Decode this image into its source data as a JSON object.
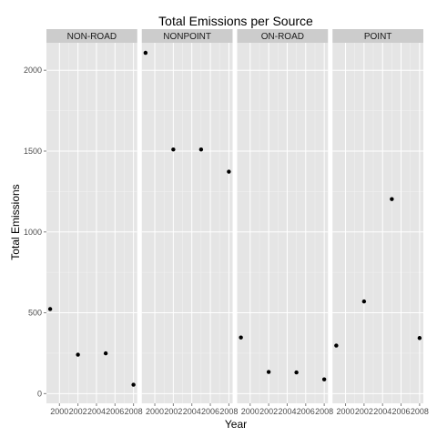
{
  "chart_data": {
    "type": "scatter",
    "title": "Total Emissions per Source",
    "xlabel": "Year",
    "ylabel": "Total Emissions",
    "ylim": [
      -60,
      2170
    ],
    "xlim": [
      1999,
      2008
    ],
    "y_ticks": [
      0,
      500,
      1000,
      1500,
      2000
    ],
    "x_ticks": [
      2000,
      2002,
      2004,
      2006,
      2008
    ],
    "x_tick_labels": [
      "2000",
      "2002",
      "2004",
      "2006",
      "2008"
    ],
    "y_tick_labels": [
      "0",
      "500",
      "1000",
      "1500",
      "2000"
    ],
    "grid": true,
    "colors": {
      "panel_bg": "#e5e5e5",
      "strip_bg": "#cccccc",
      "grid_major": "#ffffff",
      "grid_minor": "#f2f2f2",
      "point": "#000000"
    },
    "facets": [
      {
        "label": "NON-ROAD",
        "points": [
          {
            "x": 1999,
            "y": 523
          },
          {
            "x": 2002,
            "y": 241
          },
          {
            "x": 2005,
            "y": 249
          },
          {
            "x": 2008,
            "y": 55
          }
        ]
      },
      {
        "label": "NONPOINT",
        "points": [
          {
            "x": 1999,
            "y": 2108
          },
          {
            "x": 2002,
            "y": 1510
          },
          {
            "x": 2005,
            "y": 1510
          },
          {
            "x": 2008,
            "y": 1373
          }
        ]
      },
      {
        "label": "ON-ROAD",
        "points": [
          {
            "x": 1999,
            "y": 347
          },
          {
            "x": 2002,
            "y": 134
          },
          {
            "x": 2005,
            "y": 131
          },
          {
            "x": 2008,
            "y": 88
          }
        ]
      },
      {
        "label": "POINT",
        "points": [
          {
            "x": 1999,
            "y": 297
          },
          {
            "x": 2002,
            "y": 570
          },
          {
            "x": 2005,
            "y": 1203
          },
          {
            "x": 2008,
            "y": 344
          }
        ]
      }
    ]
  }
}
